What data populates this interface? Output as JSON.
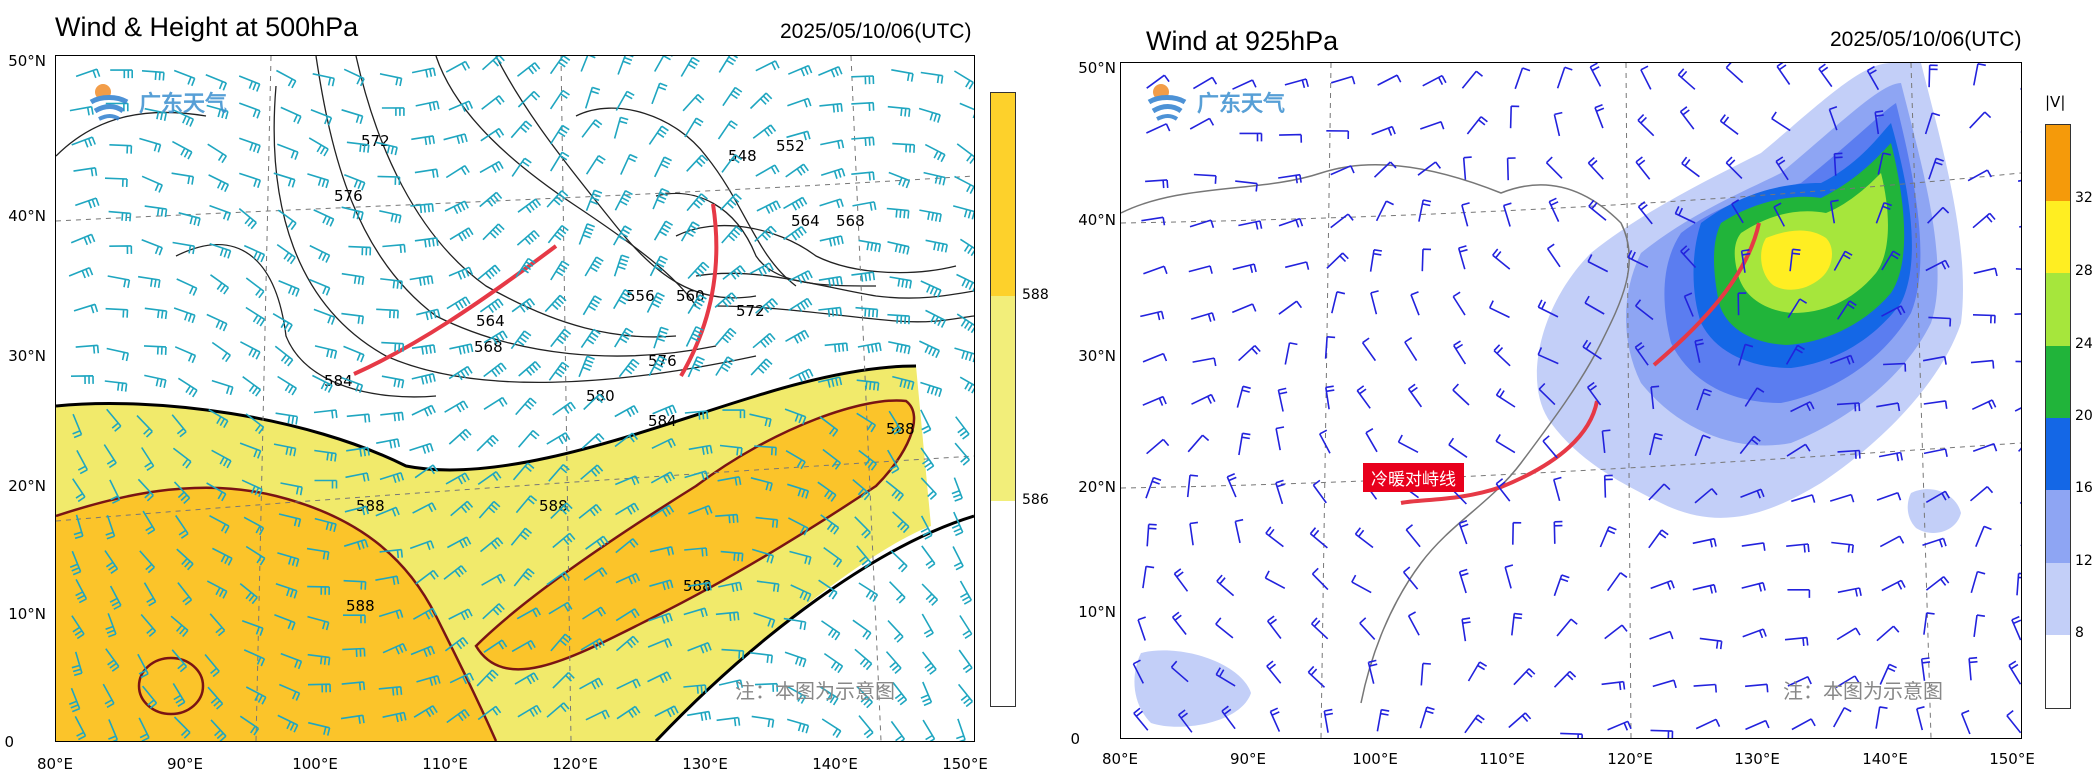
{
  "left": {
    "title": "Wind & Height at 500hPa",
    "timestamp": "2025/05/10/06(UTC)",
    "logo_text": "广东天气",
    "note": "注：本图为示意图",
    "lat_ticks": [
      "50°N",
      "40°N",
      "30°N",
      "20°N",
      "10°N",
      "0"
    ],
    "lon_ticks": [
      "80°E",
      "90°E",
      "100°E",
      "110°E",
      "120°E",
      "130°E",
      "140°E",
      "150°E"
    ],
    "contour_labels": [
      "572",
      "576",
      "580",
      "584",
      "548",
      "552",
      "564",
      "568",
      "556",
      "560",
      "572",
      "564",
      "568",
      "576",
      "580",
      "584",
      "588",
      "588",
      "588",
      "588",
      "588"
    ],
    "colorbar_ticks": [
      "588",
      "586"
    ],
    "colorbar_colors": [
      "#fdd12b",
      "#f2ee7a",
      "#ffffff"
    ],
    "shade_colors": {
      "high": "#fbc42a",
      "mid": "#f1ea6b",
      "contour": "#7a1414",
      "barb": "#1fa6c0",
      "front": "#e63946"
    }
  },
  "right": {
    "title": "Wind at 925hPa",
    "timestamp": "2025/05/10/06(UTC)",
    "logo_text": "广东天气",
    "note": "注：本图为示意图",
    "front_label": "冷暖对峙线",
    "lat_ticks": [
      "50°N",
      "40°N",
      "30°N",
      "20°N",
      "10°N",
      "0"
    ],
    "lon_ticks": [
      "80°E",
      "90°E",
      "100°E",
      "110°E",
      "120°E",
      "130°E",
      "140°E",
      "150°E"
    ],
    "colorbar_title": "|V|",
    "colorbar_ticks": [
      "32",
      "28",
      "24",
      "20",
      "16",
      "12",
      "8"
    ],
    "colorbar_colors": [
      "#f59a0a",
      "#ffee22",
      "#a6e63c",
      "#21b43a",
      "#1467e6",
      "#5b7df0",
      "#8ea5f3",
      "#c3cff8",
      "#ffffff"
    ],
    "barb_color": "#2222dd"
  }
}
